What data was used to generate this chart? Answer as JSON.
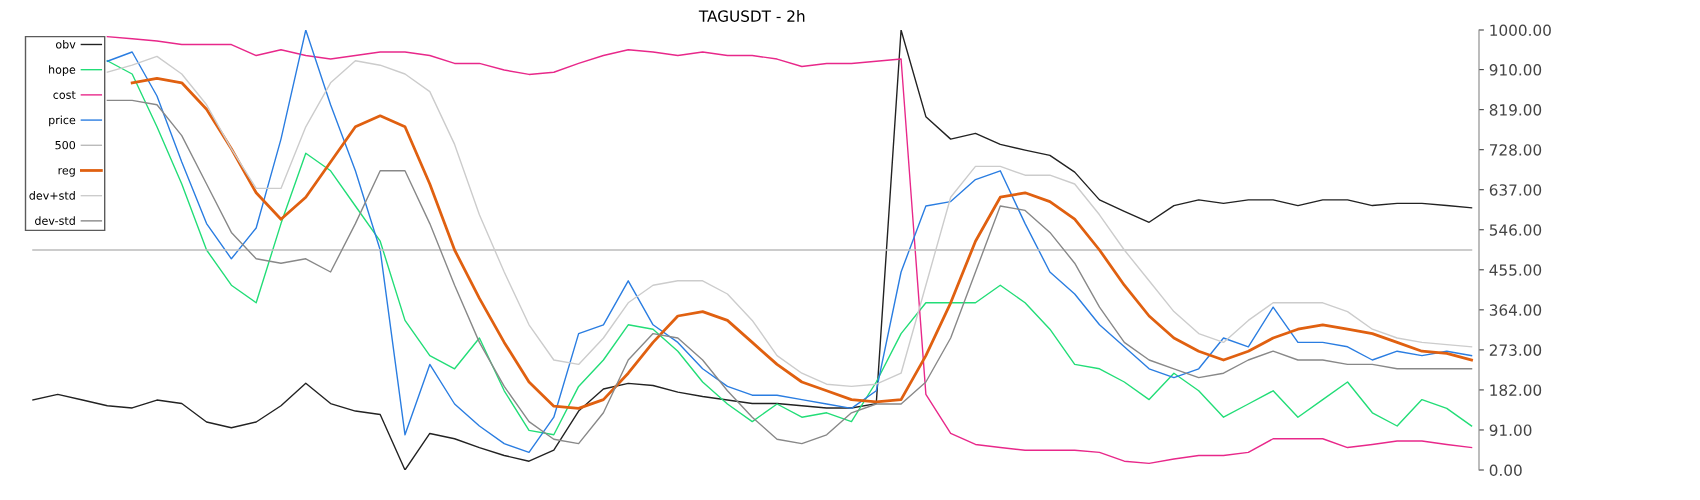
{
  "chart_data": {
    "type": "line",
    "title": "TAGUSDT - 2h",
    "categories": [
      null,
      null,
      null,
      null,
      null,
      null,
      null,
      null,
      null,
      null,
      null,
      null,
      null,
      null,
      null,
      null,
      null,
      null,
      null,
      null,
      null,
      null,
      null,
      null,
      null,
      null,
      null,
      null,
      null,
      null,
      null,
      null,
      null,
      null,
      null,
      null,
      null,
      null,
      null,
      null,
      null,
      null,
      null,
      null,
      null,
      null,
      null,
      null,
      null,
      null,
      null,
      null,
      null,
      null,
      null,
      null,
      null,
      null,
      null
    ],
    "series": [
      {
        "name": "obv",
        "color": "#222222",
        "values": [
          159,
          172,
          159,
          146,
          141,
          159,
          151,
          109,
          96,
          109,
          146,
          197,
          151,
          134,
          126,
          0,
          83,
          71,
          51,
          33,
          20,
          45,
          134,
          184,
          197,
          192,
          177,
          167,
          159,
          151,
          151,
          146,
          141,
          141,
          151,
          1000,
          803,
          752,
          765,
          740,
          727,
          715,
          677,
          614,
          588,
          563,
          601,
          614,
          606,
          614,
          614,
          601,
          614,
          614,
          601,
          606,
          606,
          601,
          596
        ]
      },
      {
        "name": "hope",
        "color": "#22dd77",
        "values": [
          null,
          null,
          null,
          930,
          900,
          780,
          650,
          500,
          420,
          380,
          560,
          720,
          680,
          600,
          520,
          340,
          260,
          230,
          300,
          180,
          90,
          80,
          190,
          250,
          330,
          320,
          270,
          200,
          150,
          110,
          150,
          120,
          130,
          110,
          200,
          310,
          380,
          380,
          380,
          420,
          380,
          320,
          240,
          230,
          200,
          160,
          220,
          180,
          120,
          150,
          180,
          120,
          160,
          200,
          130,
          100,
          160,
          140,
          100
        ]
      },
      {
        "name": "cost",
        "color": "#e8288a",
        "values": [
          null,
          null,
          null,
          985,
          980,
          975,
          967,
          967,
          967,
          942,
          955,
          942,
          934,
          942,
          950,
          950,
          942,
          924,
          924,
          909,
          899,
          904,
          924,
          942,
          955,
          950,
          942,
          950,
          942,
          942,
          934,
          917,
          924,
          924,
          929,
          934,
          172,
          83,
          58,
          51,
          45,
          45,
          45,
          40,
          20,
          15,
          25,
          33,
          33,
          40,
          71,
          71,
          71,
          51,
          58,
          66,
          66,
          58,
          51
        ]
      },
      {
        "name": "price",
        "color": "#2a7de1",
        "values": [
          null,
          null,
          null,
          929,
          950,
          850,
          700,
          560,
          480,
          550,
          752,
          1000,
          830,
          680,
          500,
          80,
          240,
          150,
          100,
          60,
          40,
          120,
          310,
          330,
          430,
          330,
          290,
          230,
          190,
          170,
          170,
          160,
          150,
          140,
          180,
          450,
          600,
          610,
          660,
          680,
          560,
          450,
          400,
          330,
          280,
          230,
          210,
          230,
          300,
          280,
          370,
          290,
          290,
          280,
          250,
          270,
          260,
          270,
          260
        ]
      },
      {
        "name": "500",
        "color": "#bbbbbb",
        "values": [
          500,
          500,
          500,
          500,
          500,
          500,
          500,
          500,
          500,
          500,
          500,
          500,
          500,
          500,
          500,
          500,
          500,
          500,
          500,
          500,
          500,
          500,
          500,
          500,
          500,
          500,
          500,
          500,
          500,
          500,
          500,
          500,
          500,
          500,
          500,
          500,
          500,
          500,
          500,
          500,
          500,
          500,
          500,
          500,
          500,
          500,
          500,
          500,
          500,
          500,
          500,
          500,
          500,
          500,
          500,
          500,
          500,
          500,
          500
        ]
      },
      {
        "name": "reg",
        "color": "#e06010",
        "values": [
          null,
          null,
          null,
          null,
          880,
          890,
          880,
          820,
          730,
          630,
          570,
          620,
          700,
          780,
          805,
          780,
          650,
          500,
          390,
          290,
          200,
          145,
          140,
          160,
          220,
          290,
          350,
          360,
          340,
          290,
          240,
          200,
          180,
          160,
          155,
          160,
          260,
          380,
          520,
          620,
          630,
          610,
          570,
          500,
          420,
          350,
          300,
          270,
          250,
          270,
          300,
          320,
          330,
          320,
          310,
          290,
          270,
          265,
          250
        ]
      },
      {
        "name": "dev+std",
        "color": "#cccccc",
        "values": [
          null,
          null,
          null,
          904,
          920,
          940,
          900,
          830,
          730,
          640,
          640,
          780,
          880,
          930,
          920,
          900,
          860,
          740,
          580,
          450,
          330,
          250,
          240,
          300,
          380,
          420,
          430,
          430,
          400,
          340,
          260,
          220,
          195,
          190,
          195,
          220,
          420,
          620,
          690,
          690,
          670,
          670,
          650,
          580,
          500,
          430,
          360,
          310,
          290,
          340,
          380,
          380,
          380,
          360,
          320,
          300,
          290,
          285,
          280
        ]
      },
      {
        "name": "dev-std",
        "color": "#888888",
        "values": [
          null,
          null,
          null,
          840,
          840,
          830,
          760,
          650,
          540,
          480,
          470,
          480,
          450,
          560,
          680,
          680,
          560,
          420,
          290,
          190,
          110,
          70,
          60,
          130,
          250,
          310,
          300,
          250,
          180,
          120,
          70,
          60,
          80,
          130,
          150,
          150,
          200,
          300,
          450,
          600,
          590,
          540,
          470,
          370,
          290,
          250,
          230,
          210,
          220,
          250,
          270,
          250,
          250,
          240,
          240,
          230,
          230,
          230,
          230
        ]
      }
    ],
    "ylim": [
      0,
      1000
    ],
    "yticks": [
      {
        "value": 0,
        "label": "0.00"
      },
      {
        "value": 91,
        "label": "91.00"
      },
      {
        "value": 182,
        "label": "182.00"
      },
      {
        "value": 273,
        "label": "273.00"
      },
      {
        "value": 364,
        "label": "364.00"
      },
      {
        "value": 455,
        "label": "455.00"
      },
      {
        "value": 546,
        "label": "546.00"
      },
      {
        "value": 637,
        "label": "637.00"
      },
      {
        "value": 728,
        "label": "728.00"
      },
      {
        "value": 819,
        "label": "819.00"
      },
      {
        "value": 910,
        "label": "910.00"
      },
      {
        "value": 1000,
        "label": "1000.00"
      }
    ],
    "tick_labels": "y",
    "grid": false,
    "legend": "top left",
    "marker": "none",
    "line_style": "solid"
  }
}
